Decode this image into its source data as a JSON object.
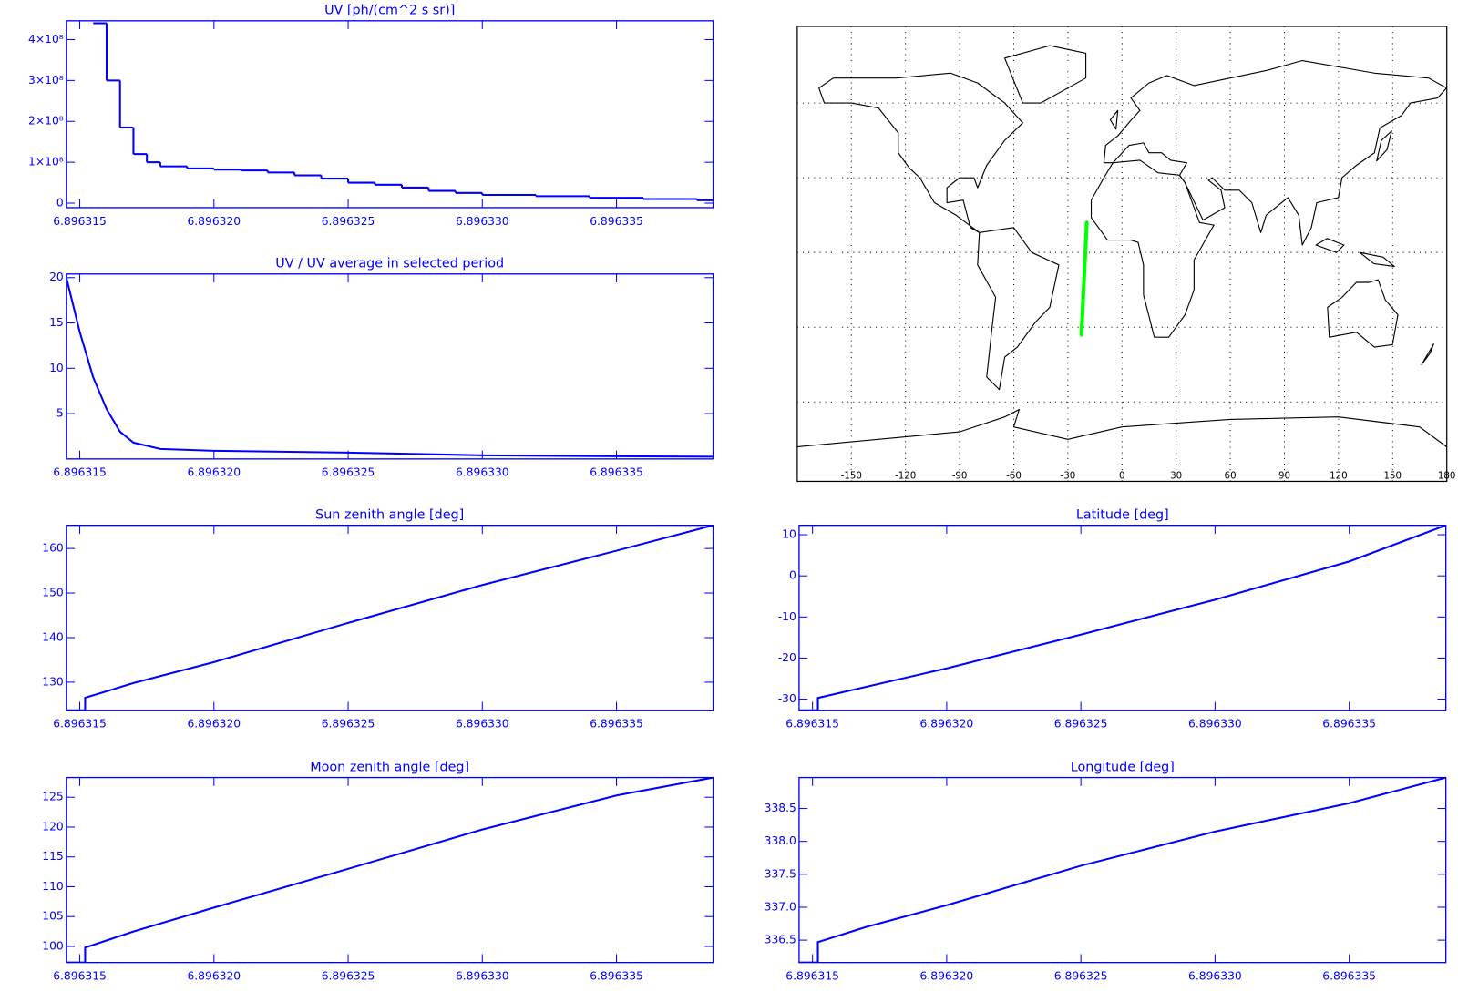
{
  "chart_data": [
    {
      "type": "line",
      "step": true,
      "title": "UV [ph/(cm^2 s sr)]",
      "x": [
        6.8963155,
        6.896316,
        6.8963165,
        6.896317,
        6.8963175,
        6.896318,
        6.896319,
        6.89632,
        6.896321,
        6.896322,
        6.896323,
        6.896324,
        6.896325,
        6.896326,
        6.896327,
        6.896328,
        6.896329,
        6.89633,
        6.896332,
        6.896334,
        6.896336,
        6.896338
      ],
      "series": [
        {
          "color": "#0000ff",
          "values": [
            440000000,
            300000000,
            185000000,
            120000000,
            100000000,
            90000000,
            85000000,
            82000000,
            80000000,
            75000000,
            68000000,
            60000000,
            50000000,
            45000000,
            38000000,
            30000000,
            25000000,
            20000000,
            17000000,
            13000000,
            10000000,
            7000000
          ]
        }
      ],
      "xlim": [
        6.8963145,
        6.8963386
      ],
      "xticks": [
        6.896315,
        {
          "value": 6.89632,
          "label": "6.896320"
        },
        6.896325,
        {
          "value": 6.89633,
          "label": "6.896330"
        },
        6.896335
      ],
      "ylim": [
        -11000000,
        446000000
      ],
      "yticks": [
        0,
        {
          "value": 100000000,
          "label": "1×10⁸"
        },
        {
          "value": 200000000,
          "label": "2×10⁸"
        },
        {
          "value": 300000000,
          "label": "3×10⁸"
        },
        {
          "value": 400000000,
          "label": "4×10⁸"
        }
      ]
    },
    {
      "type": "line",
      "title": "UV / UV average in selected period",
      "x": [
        6.8963145,
        6.896315,
        6.8963155,
        6.896316,
        6.8963165,
        6.896317,
        6.896318,
        6.89632,
        6.896325,
        6.89633,
        6.896335,
        6.8963386
      ],
      "series": [
        {
          "color": "#0000ff",
          "values": [
            20,
            14,
            9,
            5.5,
            3,
            1.8,
            1.1,
            0.9,
            0.7,
            0.4,
            0.3,
            0.25
          ]
        }
      ],
      "xlim": [
        6.8963145,
        6.8963386
      ],
      "xticks": [
        6.896315,
        {
          "value": 6.89632,
          "label": "6.896320"
        },
        6.896325,
        {
          "value": 6.89633,
          "label": "6.896330"
        },
        6.896335
      ],
      "ylim": [
        0,
        20.4
      ],
      "yticks": [
        5,
        10,
        15,
        20
      ]
    },
    {
      "type": "map",
      "x": [
        -22.5,
        -21,
        -19.5
      ],
      "series": [
        {
          "color": "#00ff00",
          "values": [
            -33,
            -10,
            12
          ]
        }
      ],
      "xlim": [
        -180,
        180
      ],
      "xticks": [
        -150,
        -120,
        -90,
        -60,
        -30,
        0,
        30,
        60,
        90,
        120,
        150,
        180
      ],
      "ylim": [
        -90,
        90
      ],
      "yticks": [
        -60,
        -30,
        0,
        30,
        60
      ],
      "grid": true
    },
    {
      "type": "line",
      "title": "Sun zenith angle [deg]",
      "x": [
        6.8963145,
        6.8963152,
        6.8963152,
        6.896317,
        6.89632,
        6.896325,
        6.89633,
        6.896335,
        6.8963386
      ],
      "series": [
        {
          "color": "#0000ff",
          "values": [
            123.7,
            123.7,
            126.5,
            129.8,
            134.5,
            143.3,
            151.8,
            159.5,
            165.2
          ]
        }
      ],
      "xlim": [
        6.8963145,
        6.8963386
      ],
      "xticks": [
        6.896315,
        {
          "value": 6.89632,
          "label": "6.896320"
        },
        6.896325,
        {
          "value": 6.89633,
          "label": "6.896330"
        },
        6.896335
      ],
      "ylim": [
        123.7,
        165.2
      ],
      "yticks": [
        130,
        140,
        150,
        160
      ]
    },
    {
      "type": "line",
      "title": "Latitude [deg]",
      "x": [
        6.8963145,
        6.8963152,
        6.8963152,
        6.896317,
        6.89632,
        6.896325,
        6.89633,
        6.896335,
        6.8963386
      ],
      "series": [
        {
          "color": "#0000ff",
          "values": [
            -32.7,
            -32.7,
            -29.7,
            -27,
            -22.5,
            -14.3,
            -5.8,
            3.5,
            12.3
          ]
        }
      ],
      "xlim": [
        6.8963145,
        6.8963386
      ],
      "xticks": [
        6.896315,
        {
          "value": 6.89632,
          "label": "6.896320"
        },
        6.896325,
        {
          "value": 6.89633,
          "label": "6.896330"
        },
        6.896335
      ],
      "ylim": [
        -32.7,
        12.3
      ],
      "yticks": [
        -30,
        -20,
        -10,
        0,
        10
      ]
    },
    {
      "type": "line",
      "title": "Moon zenith angle [deg]",
      "x": [
        6.8963145,
        6.8963152,
        6.8963152,
        6.896317,
        6.89632,
        6.896325,
        6.89633,
        6.896335,
        6.8963386
      ],
      "series": [
        {
          "color": "#0000ff",
          "values": [
            97.3,
            97.3,
            99.8,
            102.5,
            106.5,
            113,
            119.6,
            125.3,
            128.3
          ]
        }
      ],
      "xlim": [
        6.8963145,
        6.8963386
      ],
      "xticks": [
        6.896315,
        {
          "value": 6.89632,
          "label": "6.896320"
        },
        6.896325,
        {
          "value": 6.89633,
          "label": "6.896330"
        },
        6.896335
      ],
      "ylim": [
        97.3,
        128.3
      ],
      "yticks": [
        100,
        105,
        110,
        115,
        120,
        125
      ]
    },
    {
      "type": "line",
      "title": "Longitude [deg]",
      "x": [
        6.8963145,
        6.8963152,
        6.8963152,
        6.896317,
        6.89632,
        6.896325,
        6.89633,
        6.896335,
        6.8963386
      ],
      "series": [
        {
          "color": "#0000ff",
          "values": [
            336.16,
            336.16,
            336.47,
            336.7,
            337.03,
            337.63,
            338.15,
            338.58,
            338.97
          ]
        }
      ],
      "xlim": [
        6.8963145,
        6.8963386
      ],
      "xticks": [
        6.896315,
        {
          "value": 6.89632,
          "label": "6.896320"
        },
        6.896325,
        {
          "value": 6.89633,
          "label": "6.896330"
        },
        6.896335
      ],
      "ylim": [
        336.16,
        338.97
      ],
      "yticks": [
        336.5,
        {
          "value": 337,
          "label": "337.0"
        },
        337.5,
        {
          "value": 338,
          "label": "338.0"
        },
        338.5
      ]
    }
  ]
}
